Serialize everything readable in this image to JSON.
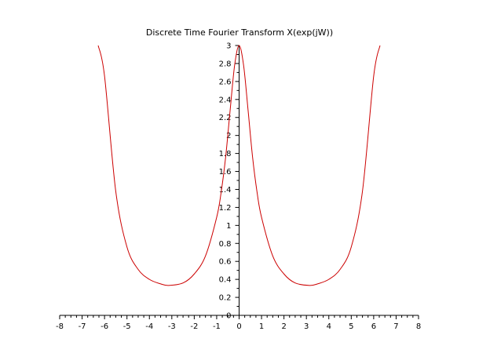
{
  "chart_data": {
    "type": "line",
    "title": "Discrete Time Fourier Transform X(exp(jW))",
    "xlabel": "",
    "ylabel": "",
    "xlim": [
      -8,
      8
    ],
    "ylim": [
      0,
      3
    ],
    "grid": false,
    "legend": "none",
    "x_ticks": [
      "-8",
      "-7",
      "-6",
      "-5",
      "-4",
      "-3",
      "-2",
      "-1",
      "0",
      "1",
      "2",
      "3",
      "4",
      "5",
      "6",
      "7",
      "8"
    ],
    "y_ticks": [
      "0",
      "0.2",
      "0.4",
      "0.6",
      "0.8",
      "1",
      "1.2",
      "1.4",
      "1.6",
      "1.8",
      "2",
      "2.2",
      "2.4",
      "2.6",
      "2.8",
      "3"
    ],
    "series": [
      {
        "color": "#cc0000",
        "x": [
          -6.2832,
          -6.0,
          -5.5,
          -5.0,
          -4.5,
          -4.0,
          -3.5,
          -3.1416,
          -2.5,
          -2.0,
          -1.5,
          -1.0,
          -0.8,
          -0.6,
          -0.4,
          -0.2,
          0.0,
          0.2,
          0.4,
          0.6,
          0.8,
          1.0,
          1.5,
          2.0,
          2.5,
          3.1416,
          3.5,
          4.0,
          4.5,
          5.0,
          5.5,
          6.0,
          6.2832
        ],
        "y": [
          3.0,
          2.66,
          1.38,
          0.76,
          0.51,
          0.4,
          0.35,
          0.333,
          0.36,
          0.46,
          0.66,
          1.09,
          1.37,
          1.76,
          2.28,
          2.78,
          3.0,
          2.78,
          2.28,
          1.76,
          1.37,
          1.09,
          0.66,
          0.46,
          0.36,
          0.333,
          0.35,
          0.4,
          0.51,
          0.76,
          1.38,
          2.66,
          3.0
        ]
      }
    ]
  }
}
